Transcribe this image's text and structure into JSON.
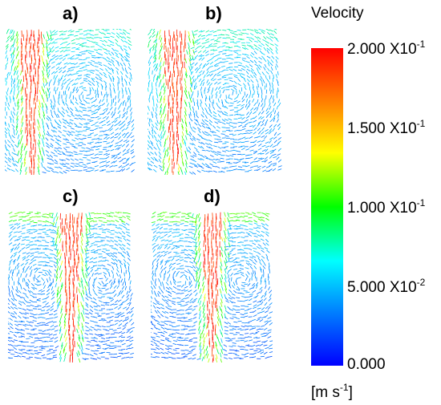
{
  "panels": [
    {
      "label": "a)",
      "layout": "side"
    },
    {
      "label": "b)",
      "layout": "side"
    },
    {
      "label": "c)",
      "layout": "center"
    },
    {
      "label": "d)",
      "layout": "center"
    }
  ],
  "colorbar": {
    "title": "Velocity",
    "ticks": [
      {
        "mant": "2.000",
        "base": "X10",
        "exp": "-1"
      },
      {
        "mant": "1.500",
        "base": "X10",
        "exp": "-1"
      },
      {
        "mant": "1.000",
        "base": "X10",
        "exp": "-1"
      },
      {
        "mant": "5.000",
        "base": "X10",
        "exp": "-2"
      },
      {
        "mant": "0.000",
        "base": "",
        "exp": ""
      }
    ],
    "units_pre": "[m s",
    "units_exp": "-1",
    "units_post": "]",
    "colors": [
      "#ff0000",
      "#ff8000",
      "#ffff00",
      "#00ff00",
      "#00ffff",
      "#0080ff",
      "#0000ff"
    ]
  }
}
